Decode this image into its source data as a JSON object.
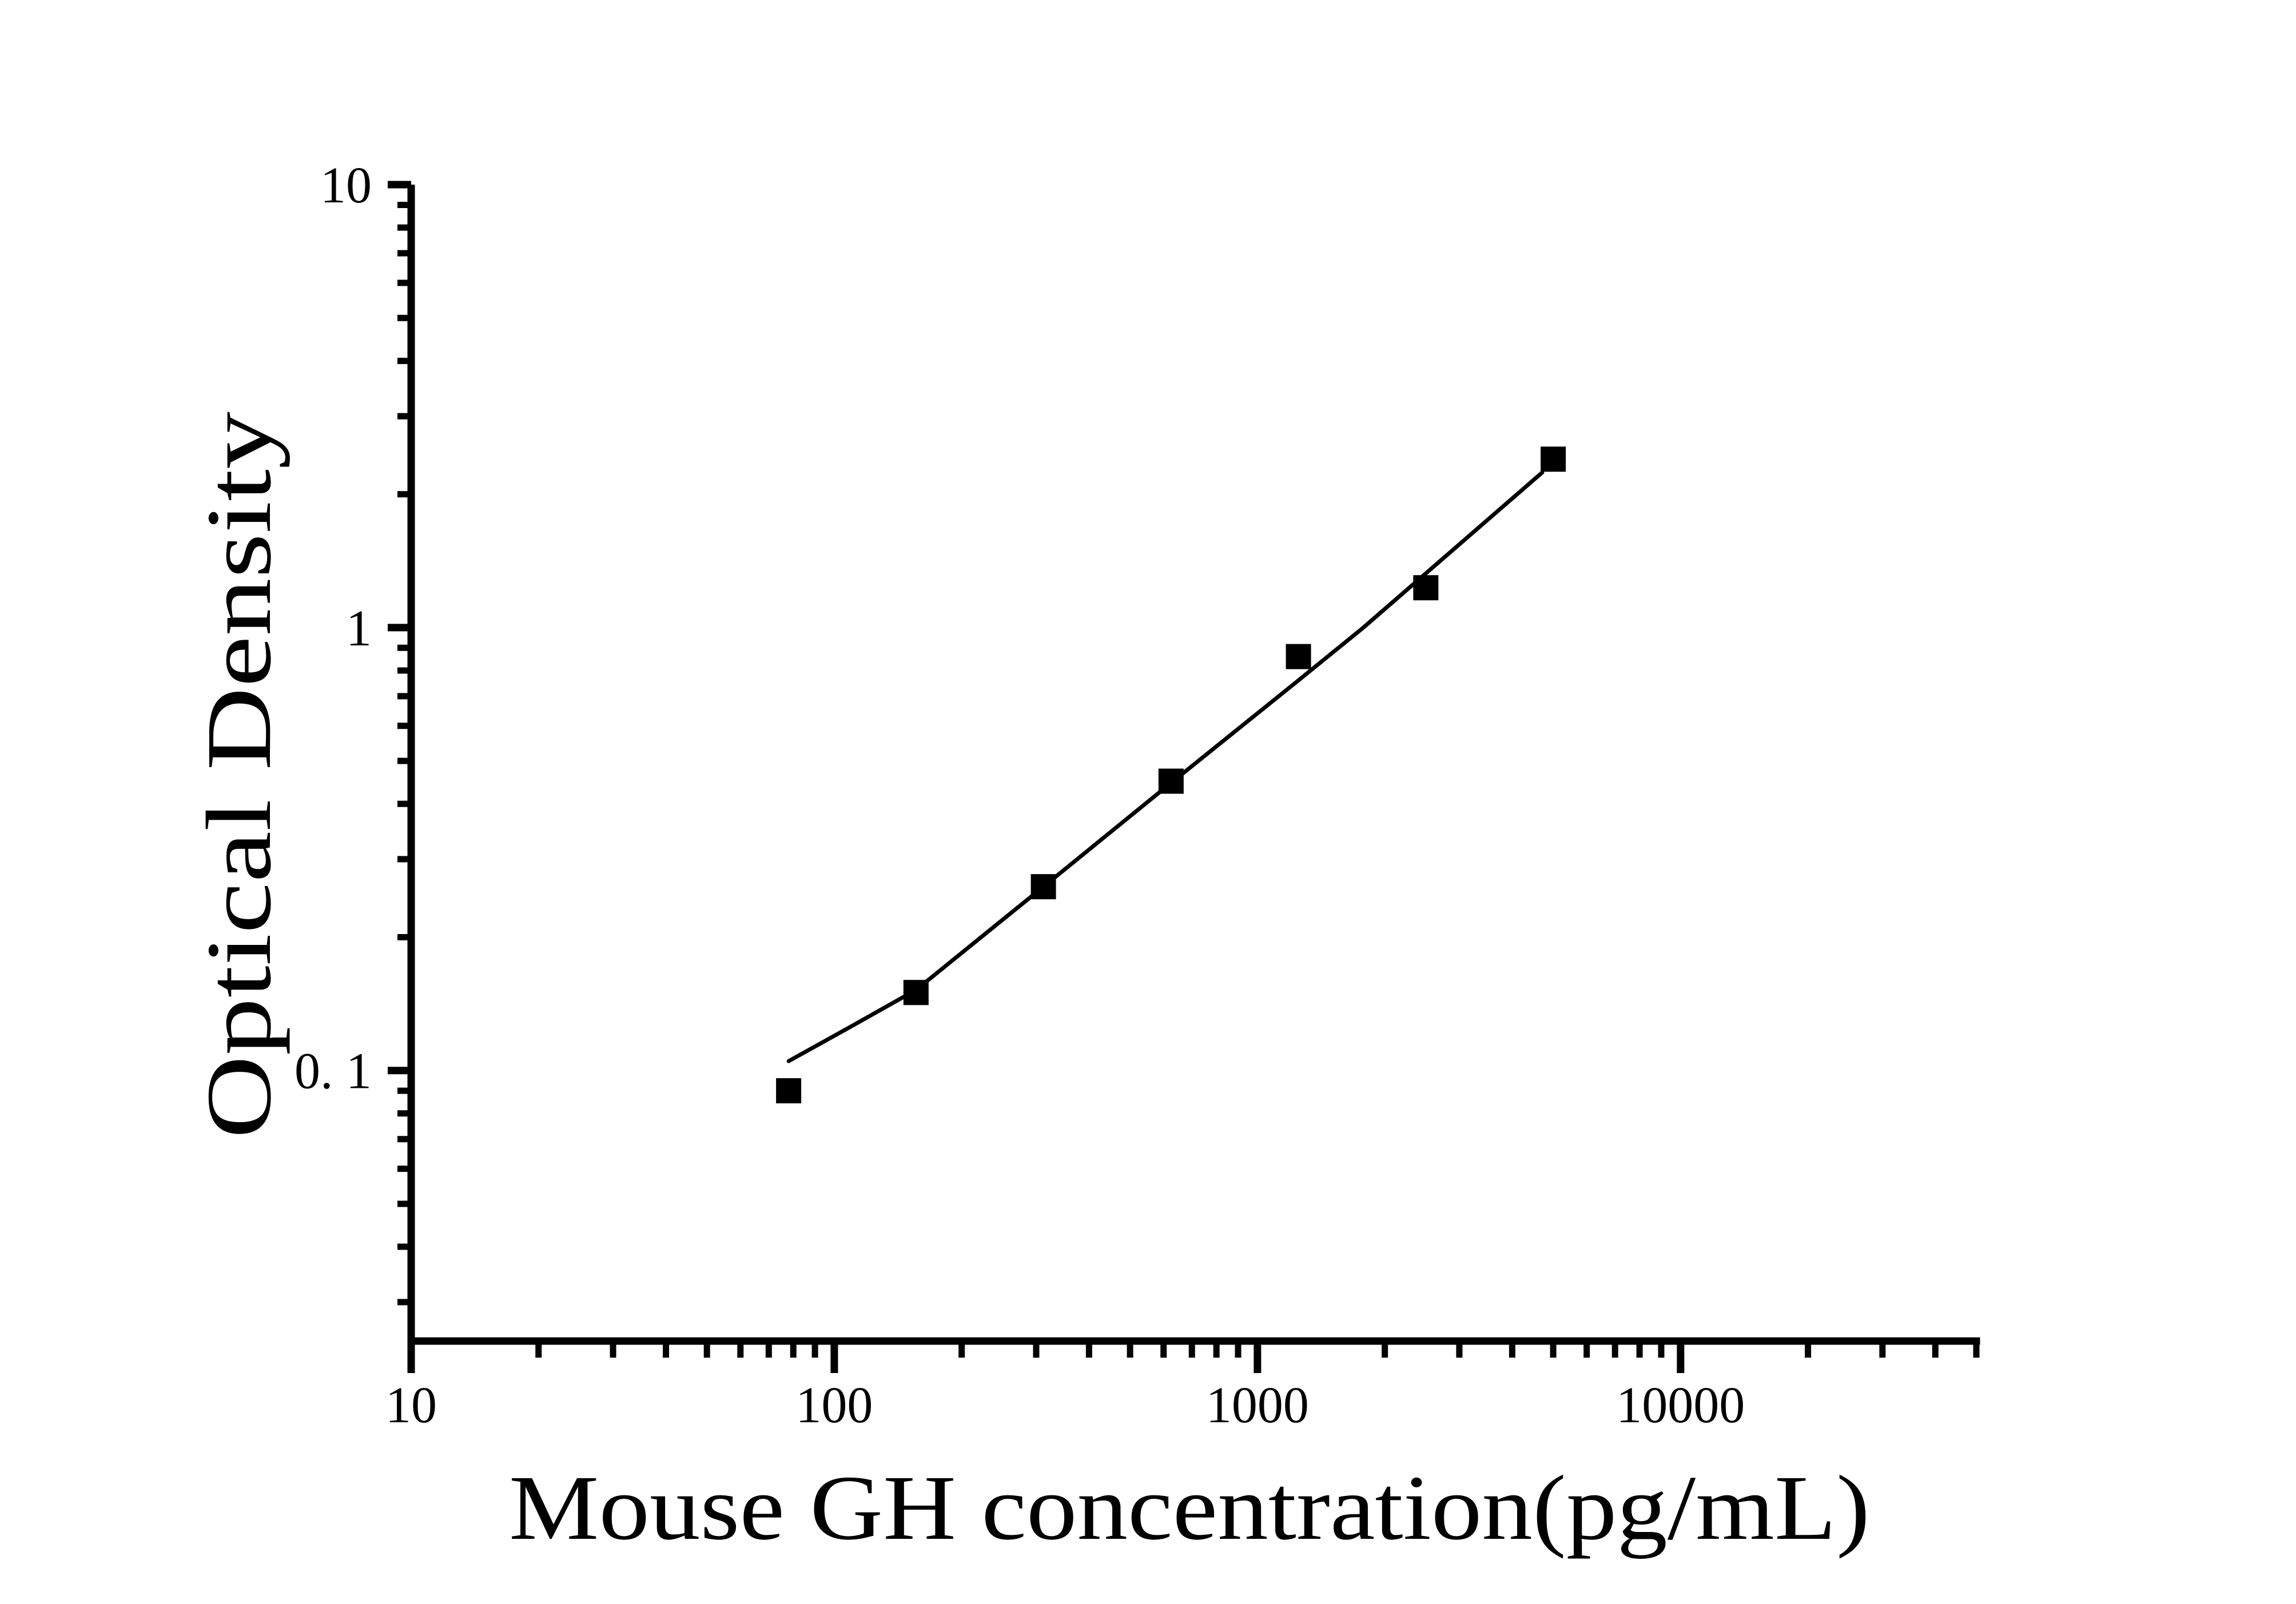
{
  "page": {
    "background": "#ffffff",
    "foreground": "#000000"
  },
  "chart_data": {
    "type": "scatter",
    "title": "",
    "xlabel": "Mouse GH concentration(pg/mL)",
    "ylabel": "Optical Density",
    "x_scale": "log",
    "y_scale": "log",
    "xlim": [
      10,
      50000
    ],
    "ylim": [
      0.0245,
      10
    ],
    "grid": false,
    "legend": null,
    "x_major_ticks": {
      "values": [
        10,
        100,
        1000,
        10000
      ],
      "labels": [
        "10",
        "100",
        "1000",
        "10000"
      ]
    },
    "y_major_ticks": {
      "values": [
        10,
        1,
        0.1
      ],
      "labels": [
        "10",
        "1",
        "0. 1"
      ]
    },
    "series": [
      {
        "name": "standard-points",
        "marker": "filled-square",
        "marker_size_px": 44,
        "color": "#000000",
        "points": [
          {
            "x": 78,
            "y": 0.09
          },
          {
            "x": 156,
            "y": 0.15
          },
          {
            "x": 312,
            "y": 0.26
          },
          {
            "x": 625,
            "y": 0.45
          },
          {
            "x": 1250,
            "y": 0.86
          },
          {
            "x": 2500,
            "y": 1.23
          },
          {
            "x": 5000,
            "y": 2.4
          }
        ]
      }
    ],
    "fit_curve": {
      "name": "fitted-standard-curve",
      "color": "#000000",
      "stroke_px": 7,
      "points": [
        [
          78,
          0.105
        ],
        [
          110,
          0.126
        ],
        [
          156,
          0.152
        ],
        [
          312,
          0.26
        ],
        [
          625,
          0.446
        ],
        [
          1250,
          0.76
        ],
        [
          1780,
          1.0
        ],
        [
          4710,
          2.24
        ]
      ]
    }
  }
}
